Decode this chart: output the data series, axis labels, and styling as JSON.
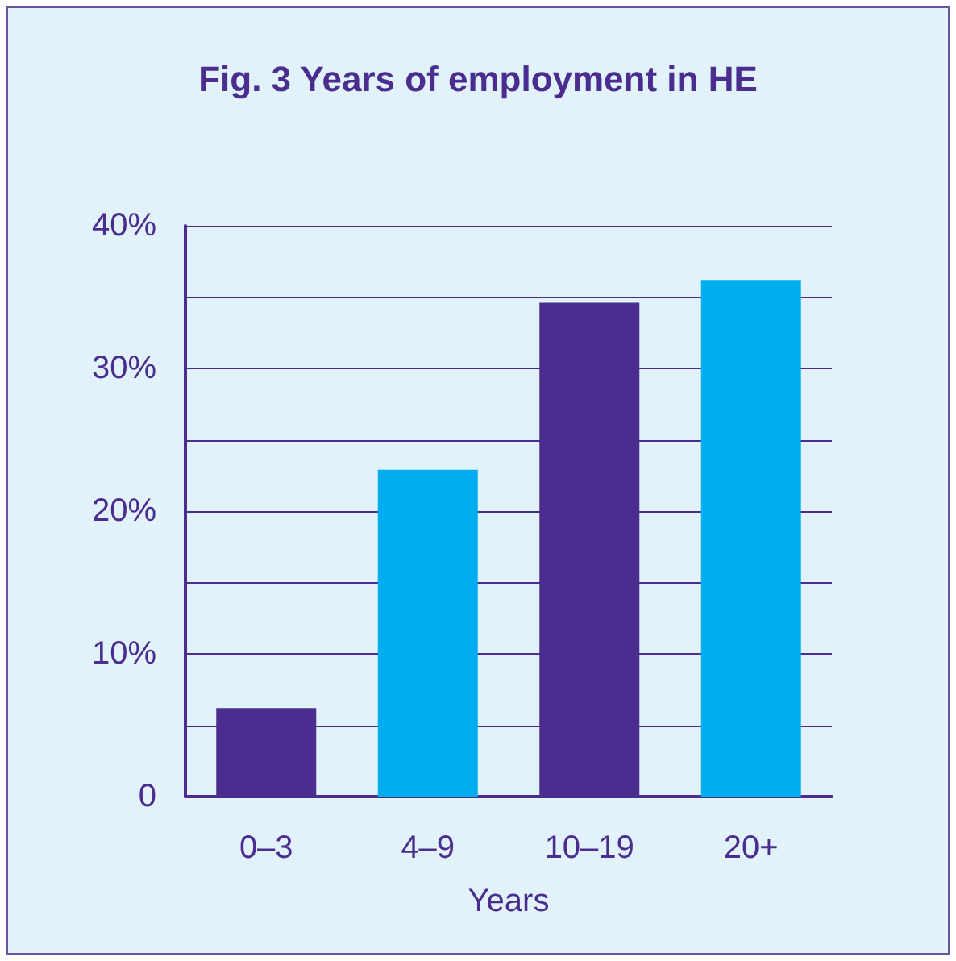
{
  "chart_data": {
    "type": "bar",
    "title": "Fig. 3 Years of employment in HE",
    "xlabel": "Years",
    "categories": [
      "0–3",
      "4–9",
      "10–19",
      "20+"
    ],
    "values": [
      6.2,
      22.9,
      34.6,
      36.2
    ],
    "colors": [
      "#4a2d8e",
      "#00aeef",
      "#4a2d8e",
      "#00aeef"
    ],
    "ylim": [
      0,
      40
    ],
    "yticks": [
      0,
      {
        "value": 5,
        "label": null
      },
      {
        "value": 10,
        "label": "10%"
      },
      {
        "value": 15,
        "label": null
      },
      {
        "value": 20,
        "label": "20%"
      },
      {
        "value": 25,
        "label": null
      },
      {
        "value": 30,
        "label": "30%"
      },
      {
        "value": 35,
        "label": null
      },
      {
        "value": 40,
        "label": "40%"
      }
    ],
    "grid": "y"
  }
}
